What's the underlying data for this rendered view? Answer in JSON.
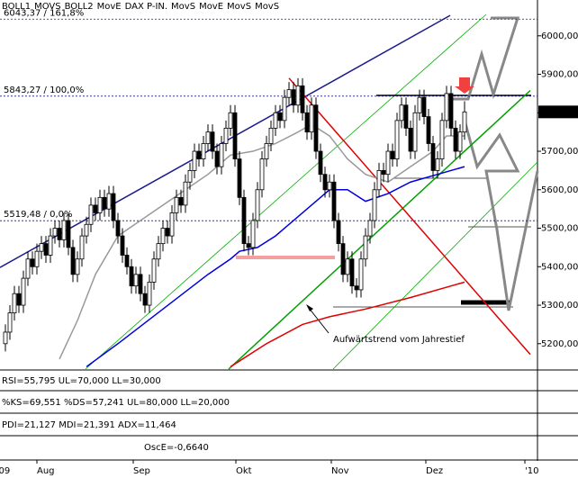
{
  "chart_data": {
    "type": "candlestick",
    "legend": [
      {
        "name": "BOLL1",
        "color": "#999999"
      },
      {
        "name": "MOVS",
        "color": "#999999"
      },
      {
        "name": "BOLL2",
        "color": "#999999"
      },
      {
        "name": "MovE",
        "color": "#1a1a8c"
      },
      {
        "name": "DAX P-IN.",
        "color": "#000000"
      },
      {
        "name": "MovS",
        "color": "#00c0c0"
      },
      {
        "name": "MovE",
        "color": "#e00000"
      },
      {
        "name": "MovS",
        "color": "#999999"
      },
      {
        "name": "MovS",
        "color": "#c000c0"
      }
    ],
    "xlim": [
      -1.2,
      118.2
    ],
    "xticks": [
      {
        "value": -1.5,
        "label": "09"
      },
      {
        "value": 7,
        "label": "Aug"
      },
      {
        "value": 28.4,
        "label": "Sep"
      },
      {
        "value": 51.2,
        "label": "Okt"
      },
      {
        "value": 72.4,
        "label": "Nov"
      },
      {
        "value": 93.4,
        "label": "Dez"
      },
      {
        "value": 115.4,
        "label": "'10"
      }
    ],
    "ylim": [
      5134,
      6058
    ],
    "yticks": [
      {
        "value": 5200,
        "label": "5200,00"
      },
      {
        "value": 5300,
        "label": "5300,00"
      },
      {
        "value": 5400,
        "label": "5400,00"
      },
      {
        "value": 5500,
        "label": "5500,00"
      },
      {
        "value": 5600,
        "label": "5600,00"
      },
      {
        "value": 5700,
        "label": "5700,00"
      },
      {
        "value": 5800,
        "label": "5800,00"
      },
      {
        "value": 5900,
        "label": "5900,00"
      },
      {
        "value": 6000,
        "label": "6000,00"
      }
    ],
    "last": {
      "value": 5802.26,
      "label": "5802,26"
    },
    "levels": [
      {
        "value": 6043.37,
        "label": "6043,37 / 161,8%"
      },
      {
        "value": 5843.27,
        "label": "5843,27 / 100,0%"
      },
      {
        "value": 5519.48,
        "label": "5519,48 / 0,0%"
      }
    ],
    "annotation": "Aufwärtstrend vom Jahrestief",
    "ohlc": [
      [
        5200,
        5250,
        5180,
        5230
      ],
      [
        5230,
        5300,
        5210,
        5280
      ],
      [
        5280,
        5350,
        5260,
        5330
      ],
      [
        5330,
        5350,
        5280,
        5300
      ],
      [
        5300,
        5390,
        5280,
        5370
      ],
      [
        5370,
        5440,
        5350,
        5420
      ],
      [
        5420,
        5440,
        5380,
        5400
      ],
      [
        5400,
        5460,
        5380,
        5440
      ],
      [
        5440,
        5480,
        5420,
        5460
      ],
      [
        5460,
        5480,
        5410,
        5430
      ],
      [
        5430,
        5500,
        5410,
        5480
      ],
      [
        5480,
        5520,
        5460,
        5500
      ],
      [
        5500,
        5520,
        5450,
        5470
      ],
      [
        5470,
        5540,
        5450,
        5520
      ],
      [
        5520,
        5540,
        5430,
        5450
      ],
      [
        5450,
        5470,
        5360,
        5380
      ],
      [
        5380,
        5440,
        5360,
        5420
      ],
      [
        5420,
        5500,
        5400,
        5480
      ],
      [
        5480,
        5530,
        5460,
        5510
      ],
      [
        5510,
        5580,
        5490,
        5560
      ],
      [
        5560,
        5580,
        5520,
        5540
      ],
      [
        5540,
        5600,
        5520,
        5580
      ],
      [
        5580,
        5600,
        5530,
        5550
      ],
      [
        5550,
        5610,
        5530,
        5590
      ],
      [
        5590,
        5610,
        5500,
        5520
      ],
      [
        5520,
        5540,
        5460,
        5480
      ],
      [
        5480,
        5500,
        5410,
        5430
      ],
      [
        5430,
        5450,
        5380,
        5400
      ],
      [
        5400,
        5420,
        5330,
        5350
      ],
      [
        5350,
        5400,
        5330,
        5380
      ],
      [
        5380,
        5400,
        5310,
        5330
      ],
      [
        5330,
        5350,
        5280,
        5300
      ],
      [
        5300,
        5380,
        5280,
        5360
      ],
      [
        5360,
        5440,
        5340,
        5420
      ],
      [
        5420,
        5480,
        5400,
        5460
      ],
      [
        5460,
        5520,
        5440,
        5500
      ],
      [
        5500,
        5520,
        5460,
        5480
      ],
      [
        5480,
        5560,
        5460,
        5540
      ],
      [
        5540,
        5600,
        5520,
        5580
      ],
      [
        5580,
        5600,
        5540,
        5560
      ],
      [
        5560,
        5640,
        5540,
        5620
      ],
      [
        5620,
        5670,
        5600,
        5650
      ],
      [
        5650,
        5720,
        5630,
        5700
      ],
      [
        5700,
        5720,
        5660,
        5680
      ],
      [
        5680,
        5740,
        5660,
        5720
      ],
      [
        5720,
        5770,
        5700,
        5750
      ],
      [
        5750,
        5770,
        5680,
        5700
      ],
      [
        5700,
        5720,
        5640,
        5660
      ],
      [
        5660,
        5740,
        5640,
        5720
      ],
      [
        5720,
        5780,
        5700,
        5760
      ],
      [
        5760,
        5820,
        5740,
        5800
      ],
      [
        5800,
        5820,
        5660,
        5680
      ],
      [
        5680,
        5700,
        5560,
        5580
      ],
      [
        5580,
        5600,
        5440,
        5460
      ],
      [
        5460,
        5480,
        5430,
        5450
      ],
      [
        5450,
        5540,
        5430,
        5520
      ],
      [
        5520,
        5620,
        5500,
        5600
      ],
      [
        5600,
        5700,
        5580,
        5680
      ],
      [
        5680,
        5740,
        5660,
        5720
      ],
      [
        5720,
        5780,
        5700,
        5760
      ],
      [
        5760,
        5820,
        5740,
        5800
      ],
      [
        5800,
        5820,
        5760,
        5780
      ],
      [
        5780,
        5860,
        5760,
        5840
      ],
      [
        5840,
        5880,
        5820,
        5860
      ],
      [
        5860,
        5880,
        5800,
        5820
      ],
      [
        5820,
        5890,
        5800,
        5870
      ],
      [
        5870,
        5890,
        5780,
        5800
      ],
      [
        5800,
        5820,
        5730,
        5750
      ],
      [
        5750,
        5840,
        5730,
        5820
      ],
      [
        5820,
        5840,
        5680,
        5700
      ],
      [
        5700,
        5720,
        5620,
        5640
      ],
      [
        5640,
        5660,
        5580,
        5600
      ],
      [
        5600,
        5640,
        5580,
        5620
      ],
      [
        5620,
        5640,
        5500,
        5520
      ],
      [
        5520,
        5540,
        5440,
        5460
      ],
      [
        5460,
        5480,
        5360,
        5380
      ],
      [
        5380,
        5440,
        5360,
        5420
      ],
      [
        5420,
        5440,
        5330,
        5350
      ],
      [
        5350,
        5370,
        5320,
        5340
      ],
      [
        5340,
        5440,
        5320,
        5420
      ],
      [
        5420,
        5500,
        5400,
        5480
      ],
      [
        5480,
        5540,
        5460,
        5520
      ],
      [
        5520,
        5620,
        5500,
        5600
      ],
      [
        5600,
        5670,
        5580,
        5650
      ],
      [
        5650,
        5670,
        5620,
        5640
      ],
      [
        5640,
        5720,
        5620,
        5700
      ],
      [
        5700,
        5720,
        5660,
        5680
      ],
      [
        5680,
        5800,
        5660,
        5780
      ],
      [
        5780,
        5840,
        5760,
        5820
      ],
      [
        5820,
        5840,
        5740,
        5760
      ],
      [
        5760,
        5780,
        5680,
        5700
      ],
      [
        5700,
        5820,
        5680,
        5800
      ],
      [
        5800,
        5860,
        5780,
        5840
      ],
      [
        5840,
        5860,
        5770,
        5790
      ],
      [
        5790,
        5810,
        5700,
        5720
      ],
      [
        5720,
        5740,
        5630,
        5650
      ],
      [
        5650,
        5700,
        5630,
        5680
      ],
      [
        5680,
        5800,
        5660,
        5780
      ],
      [
        5780,
        5870,
        5760,
        5850
      ],
      [
        5850,
        5870,
        5740,
        5760
      ],
      [
        5760,
        5780,
        5680,
        5700
      ],
      [
        5700,
        5770,
        5680,
        5750
      ],
      [
        5750,
        5830,
        5730,
        5802.26
      ]
    ],
    "overlays": [
      {
        "color": "#1a1a8c",
        "x": [
          -1.2,
          98.8
        ],
        "values": [
          5398,
          6053
        ]
      },
      {
        "color": "#00a000",
        "x": [
          49.6,
          116.6
        ],
        "values": [
          5134,
          5858
        ]
      },
      {
        "color": "#e00000",
        "x": [
          63,
          116.6
        ],
        "values": [
          5890,
          5172
        ]
      },
      {
        "color": "#0000e0",
        "x": [
          18,
          25,
          35,
          45,
          50,
          52,
          56,
          60,
          66,
          70,
          72,
          76,
          80,
          85,
          90,
          96,
          102
        ],
        "values": [
          5140,
          5200,
          5290,
          5380,
          5420,
          5440,
          5450,
          5480,
          5540,
          5580,
          5600,
          5600,
          5570,
          5590,
          5620,
          5640,
          5660
        ]
      },
      {
        "color": "#999999",
        "x": [
          12,
          16,
          20,
          25,
          30,
          35,
          40,
          45,
          50,
          55,
          60,
          65,
          68,
          72,
          76,
          80,
          85,
          90,
          95,
          98,
          102
        ],
        "values": [
          5160,
          5260,
          5380,
          5480,
          5520,
          5560,
          5600,
          5640,
          5690,
          5700,
          5720,
          5750,
          5770,
          5740,
          5680,
          5640,
          5620,
          5660,
          5700,
          5740,
          5740
        ]
      },
      {
        "color": "#e00000",
        "x": [
          50,
          58,
          66,
          72,
          80,
          90,
          102
        ],
        "values": [
          5140,
          5200,
          5250,
          5270,
          5290,
          5320,
          5360
        ]
      }
    ],
    "panels": [
      "RSI=55,795 UL=70,000 LL=30,000",
      "%KS=69,551 %DS=57,241 UL=80,000 LL=20,000",
      "PDI=21,127 MDI=21,391 ADX=11,464",
      "OscE=-0,6640"
    ]
  }
}
